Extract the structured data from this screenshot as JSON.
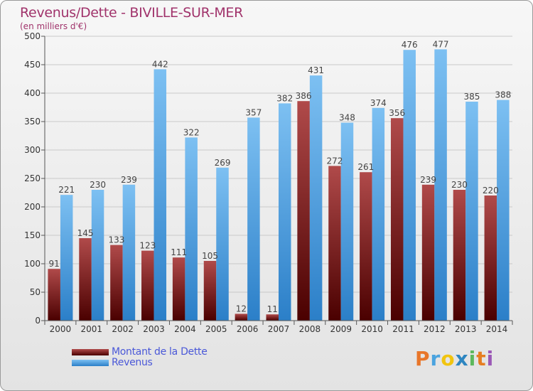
{
  "header": {
    "title": "Revenus/Dette - BIVILLE-SUR-MER",
    "subtitle": "(en milliers d'€)"
  },
  "legend": {
    "debt_label": "Montant de la Dette",
    "revenue_label": "Revenus"
  },
  "logo": {
    "letters": [
      "P",
      "r",
      "o",
      "x",
      "i",
      "t",
      "i"
    ],
    "colors": [
      "#e8762a",
      "#4aa3df",
      "#f1c40f",
      "#2e86c1",
      "#5cb85c",
      "#e67e22",
      "#9b59b6"
    ]
  },
  "colors": {
    "debt_top": "#b04a4a",
    "debt_bottom": "#4a0000",
    "revenue_top": "#7dc0f2",
    "revenue_bottom": "#2b7fc8",
    "title": "#a0336b",
    "legend_text": "#4a58d8"
  },
  "chart_data": {
    "type": "bar",
    "title": "Revenus/Dette - BIVILLE-SUR-MER",
    "subtitle": "(en milliers d'€)",
    "categories": [
      "2000",
      "2001",
      "2002",
      "2003",
      "2004",
      "2005",
      "2006",
      "2007",
      "2008",
      "2009",
      "2010",
      "2011",
      "2012",
      "2013",
      "2014"
    ],
    "series": [
      {
        "name": "Montant de la Dette",
        "values": [
          91,
          145,
          133,
          123,
          111,
          105,
          12,
          11,
          386,
          272,
          261,
          356,
          239,
          230,
          220
        ]
      },
      {
        "name": "Revenus",
        "values": [
          221,
          230,
          239,
          442,
          322,
          269,
          357,
          382,
          431,
          348,
          374,
          476,
          477,
          385,
          388
        ]
      }
    ],
    "ylim": [
      0,
      500
    ],
    "yticks": [
      0,
      50,
      100,
      150,
      200,
      250,
      300,
      350,
      400,
      450,
      500
    ],
    "grid": true,
    "legend_position": "bottom-left"
  }
}
